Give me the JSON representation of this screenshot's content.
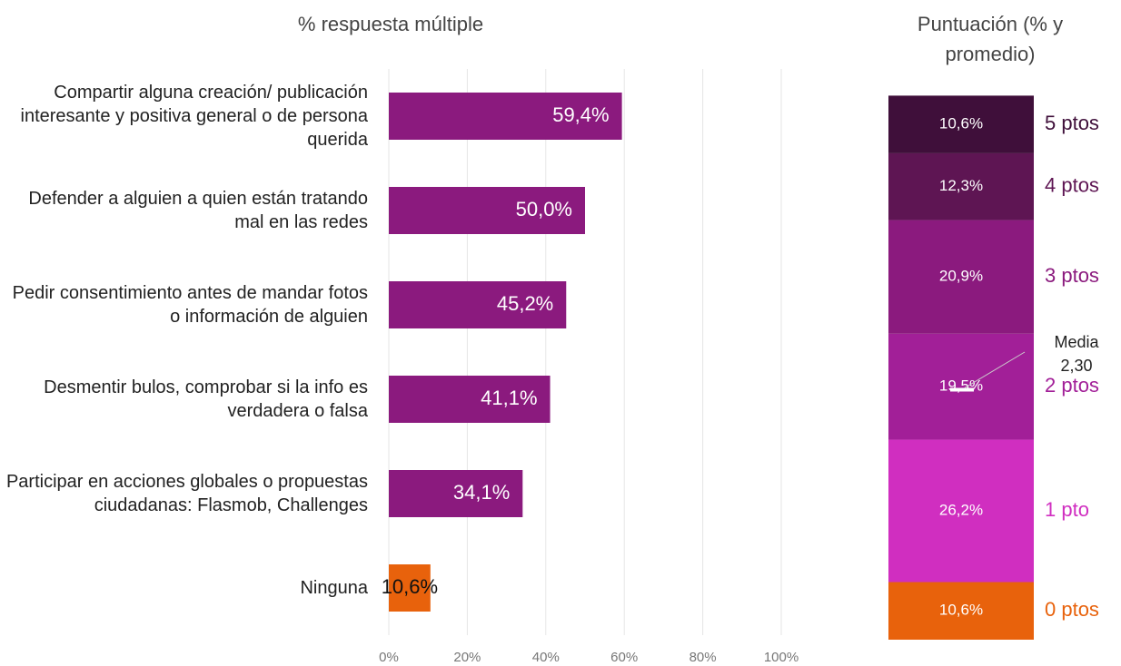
{
  "chart_data": [
    {
      "type": "hbar",
      "title": "% respuesta múltiple",
      "categories": [
        "Compartir alguna creación/ publicación interesante y positiva general o de persona querida",
        "Defender a alguien a quien están tratando mal en las redes",
        "Pedir consentimiento antes de mandar fotos o información de alguien",
        "Desmentir bulos, comprobar si la info es verdadera o falsa",
        "Participar en acciones globales o propuestas ciudadanas: Flasmob, Challenges",
        "Ninguna"
      ],
      "values": [
        59.4,
        50.0,
        45.2,
        41.1,
        34.1,
        10.6
      ],
      "value_labels": [
        "59,4%",
        "50,0%",
        "45,2%",
        "41,1%",
        "34,1%",
        "10,6%"
      ],
      "colors": [
        "#8b1a7e",
        "#8b1a7e",
        "#8b1a7e",
        "#8b1a7e",
        "#8b1a7e",
        "#e8620c"
      ],
      "xlim": [
        0,
        100
      ],
      "xticks": [
        {
          "value": 0,
          "label": "0%"
        },
        {
          "value": 20,
          "label": "20%"
        },
        {
          "value": 40,
          "label": "40%"
        },
        {
          "value": 60,
          "label": "60%"
        },
        {
          "value": 80,
          "label": "80%"
        },
        {
          "value": 100,
          "label": "100%"
        }
      ],
      "grid": true
    },
    {
      "type": "stacked_bar",
      "title": "Puntuación (% y promedio)",
      "ylim": [
        0,
        100
      ],
      "series": [
        {
          "name": "0 ptos",
          "color": "#e8620c",
          "values": [
            10.6
          ],
          "value_labels": [
            "10,6%"
          ]
        },
        {
          "name": "1 pto",
          "color": "#d02ec0",
          "values": [
            26.2
          ],
          "value_labels": [
            "26,2%"
          ]
        },
        {
          "name": "2 ptos",
          "color": "#a21f98",
          "values": [
            19.5
          ],
          "value_labels": [
            "19,5%"
          ]
        },
        {
          "name": "3 ptos",
          "color": "#8b1a7e",
          "values": [
            20.9
          ],
          "value_labels": [
            "20,9%"
          ]
        },
        {
          "name": "4 ptos",
          "color": "#5e1553",
          "values": [
            12.3
          ],
          "value_labels": [
            "12,3%"
          ]
        },
        {
          "name": "5 ptos",
          "color": "#3f0f3a",
          "values": [
            10.6
          ],
          "value_labels": [
            "10,6%"
          ]
        }
      ],
      "mean": 2.3,
      "mean_label": "2,30",
      "mean_title": "Media"
    }
  ]
}
